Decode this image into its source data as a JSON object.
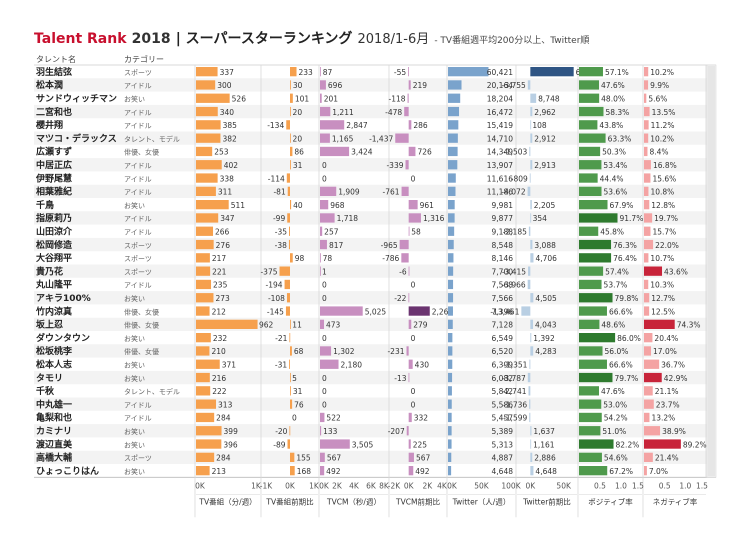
{
  "title": {
    "brand": "Talent Rank",
    "year": "2018",
    "main": "| スーパースターランキング",
    "range": "2018/1-6月",
    "note": "- TV番組週平均200分以上、Twitter順"
  },
  "colors": {
    "tv": "#f6a04d",
    "tv_change": "#f6a04d",
    "tvcm": "#c88fc0",
    "tvcm_change": "#c88fc0",
    "tvcm_change_dark": "#6b3470",
    "twitter": "#7aa3cc",
    "twitter_change": "#b9cfe3",
    "twitter_change_dark": "#2f5584",
    "positive": "#4f9a4c",
    "positive_dark": "#2e7a2e",
    "negative": "#f4a3a3",
    "negative_dark": "#c8243a",
    "row_alt": "#f3f3f3"
  },
  "chart_data": {
    "type": "table",
    "row_header": "タレント名",
    "category_header": "カテゴリー",
    "rows": [
      {
        "name": "羽生結弦",
        "category": "スポーツ",
        "tv": 337,
        "tv_change": 233,
        "tvcm": 87,
        "tvcm_change": -55,
        "twitter": 60421,
        "twitter_change": 65011,
        "positive": 57.1,
        "negative": 10.2
      },
      {
        "name": "松本潤",
        "category": "アイドル",
        "tv": 300,
        "tv_change": 30,
        "tvcm": 696,
        "tvcm_change": 219,
        "twitter": 20164,
        "twitter_change": -3755,
        "positive": 47.6,
        "negative": 9.9
      },
      {
        "name": "サンドウィッチマン",
        "category": "お笑い",
        "tv": 526,
        "tv_change": 101,
        "tvcm": 201,
        "tvcm_change": -118,
        "twitter": 18204,
        "twitter_change": 8748,
        "positive": 48.0,
        "negative": 5.6
      },
      {
        "name": "二宮和也",
        "category": "アイドル",
        "tv": 340,
        "tv_change": 20,
        "tvcm": 1211,
        "tvcm_change": -478,
        "twitter": 16472,
        "twitter_change": 2962,
        "positive": 58.3,
        "negative": 13.5
      },
      {
        "name": "櫻井翔",
        "category": "アイドル",
        "tv": 385,
        "tv_change": -134,
        "tvcm": 2847,
        "tvcm_change": 286,
        "twitter": 15419,
        "twitter_change": 108,
        "positive": 43.8,
        "negative": 11.2
      },
      {
        "name": "マツコ・デラックス",
        "category": "タレント、モデル",
        "tv": 382,
        "tv_change": 20,
        "tvcm": 1165,
        "tvcm_change": -1437,
        "twitter": 14710,
        "twitter_change": 2912,
        "positive": 63.3,
        "negative": 10.2
      },
      {
        "name": "広瀬すず",
        "category": "俳優、女優",
        "tv": 253,
        "tv_change": 86,
        "tvcm": 3424,
        "tvcm_change": 726,
        "twitter": 14349,
        "twitter_change": -1503,
        "positive": 50.3,
        "negative": 8.4
      },
      {
        "name": "中居正広",
        "category": "アイドル",
        "tv": 402,
        "tv_change": 31,
        "tvcm": 0,
        "tvcm_change": -339,
        "twitter": 13907,
        "twitter_change": 2913,
        "positive": 53.4,
        "negative": 16.8
      },
      {
        "name": "伊野尾慧",
        "category": "アイドル",
        "tv": 338,
        "tv_change": -114,
        "tvcm": 0,
        "tvcm_change": 0,
        "twitter": 11616,
        "twitter_change": -809,
        "positive": 44.4,
        "negative": 15.6
      },
      {
        "name": "相葉雅紀",
        "category": "アイドル",
        "tv": 311,
        "tv_change": -81,
        "tvcm": 1909,
        "tvcm_change": -761,
        "twitter": 11186,
        "twitter_change": -4072,
        "positive": 53.6,
        "negative": 10.8
      },
      {
        "name": "千鳥",
        "category": "お笑い",
        "tv": 511,
        "tv_change": 40,
        "tvcm": 968,
        "tvcm_change": 961,
        "twitter": 9981,
        "twitter_change": 2205,
        "positive": 67.9,
        "negative": 12.8
      },
      {
        "name": "指原莉乃",
        "category": "アイドル",
        "tv": 347,
        "tv_change": -99,
        "tvcm": 1718,
        "tvcm_change": 1316,
        "twitter": 9877,
        "twitter_change": 354,
        "positive": 91.7,
        "negative": 19.7
      },
      {
        "name": "山田涼介",
        "category": "アイドル",
        "tv": 266,
        "tv_change": -35,
        "tvcm": 257,
        "tvcm_change": 58,
        "twitter": 9188,
        "twitter_change": -2185,
        "positive": 45.8,
        "negative": 15.7
      },
      {
        "name": "松岡修造",
        "category": "スポーツ",
        "tv": 276,
        "tv_change": -38,
        "tvcm": 817,
        "tvcm_change": -965,
        "twitter": 8548,
        "twitter_change": 3088,
        "positive": 76.3,
        "negative": 22.0
      },
      {
        "name": "大谷翔平",
        "category": "スポーツ",
        "tv": 217,
        "tv_change": 98,
        "tvcm": 78,
        "tvcm_change": -786,
        "twitter": 8146,
        "twitter_change": 4706,
        "positive": 76.4,
        "negative": 10.7
      },
      {
        "name": "貴乃花",
        "category": "スポーツ",
        "tv": 221,
        "tv_change": -375,
        "tvcm": 1,
        "tvcm_change": -6,
        "twitter": 7700,
        "twitter_change": -3415,
        "positive": 57.4,
        "negative": 43.6
      },
      {
        "name": "丸山隆平",
        "category": "アイドル",
        "tv": 235,
        "tv_change": -194,
        "tvcm": 0,
        "tvcm_change": 0,
        "twitter": 7568,
        "twitter_change": -3966,
        "positive": 53.7,
        "negative": 10.3
      },
      {
        "name": "アキラ100%",
        "category": "お笑い",
        "tv": 273,
        "tv_change": -108,
        "tvcm": 0,
        "tvcm_change": -22,
        "twitter": 7566,
        "twitter_change": 4505,
        "positive": 79.8,
        "negative": 12.7
      },
      {
        "name": "竹内涼真",
        "category": "俳優、女優",
        "tv": 212,
        "tv_change": -145,
        "tvcm": 5025,
        "tvcm_change": 2260,
        "twitter": 7396,
        "twitter_change": -13461,
        "positive": 66.6,
        "negative": 12.5
      },
      {
        "name": "坂上忍",
        "category": "俳優、女優",
        "tv": 962,
        "tv_change": 11,
        "tvcm": 473,
        "tvcm_change": 279,
        "twitter": 7128,
        "twitter_change": 4043,
        "positive": 48.6,
        "negative": 74.3
      },
      {
        "name": "ダウンタウン",
        "category": "お笑い",
        "tv": 232,
        "tv_change": -21,
        "tvcm": 0,
        "tvcm_change": 0,
        "twitter": 6549,
        "twitter_change": 1392,
        "positive": 86.0,
        "negative": 20.4
      },
      {
        "name": "松坂桃李",
        "category": "俳優、女優",
        "tv": 210,
        "tv_change": 68,
        "tvcm": 1302,
        "tvcm_change": -231,
        "twitter": 6520,
        "twitter_change": 4283,
        "positive": 56.0,
        "negative": 17.0
      },
      {
        "name": "松本人志",
        "category": "お笑い",
        "tv": 371,
        "tv_change": -31,
        "tvcm": 2180,
        "tvcm_change": 430,
        "twitter": 6399,
        "twitter_change": -1351,
        "positive": 66.6,
        "negative": 36.7
      },
      {
        "name": "タモリ",
        "category": "お笑い",
        "tv": 216,
        "tv_change": 5,
        "tvcm": 0,
        "tvcm_change": -13,
        "twitter": 6082,
        "twitter_change": -3787,
        "positive": 79.7,
        "negative": 42.9
      },
      {
        "name": "千秋",
        "category": "タレント、モデル",
        "tv": 222,
        "tv_change": 31,
        "tvcm": 0,
        "tvcm_change": 0,
        "twitter": 5842,
        "twitter_change": -2741,
        "positive": 47.6,
        "negative": 21.1
      },
      {
        "name": "中丸雄一",
        "category": "アイドル",
        "tv": 313,
        "tv_change": 76,
        "tvcm": 0,
        "tvcm_change": 0,
        "twitter": 5586,
        "twitter_change": -1736,
        "positive": 53.0,
        "negative": 23.7
      },
      {
        "name": "亀梨和也",
        "category": "アイドル",
        "tv": 284,
        "tv_change": 0,
        "tvcm": 522,
        "tvcm_change": 332,
        "twitter": 5457,
        "twitter_change": -1599,
        "positive": 54.2,
        "negative": 13.2
      },
      {
        "name": "カミナリ",
        "category": "お笑い",
        "tv": 399,
        "tv_change": -20,
        "tvcm": 133,
        "tvcm_change": -207,
        "twitter": 5389,
        "twitter_change": 1637,
        "positive": 51.0,
        "negative": 38.9
      },
      {
        "name": "渡辺直美",
        "category": "お笑い",
        "tv": 396,
        "tv_change": -89,
        "tvcm": 3505,
        "tvcm_change": 225,
        "twitter": 5313,
        "twitter_change": 1161,
        "positive": 82.2,
        "negative": 89.2
      },
      {
        "name": "高橋大輔",
        "category": "スポーツ",
        "tv": 284,
        "tv_change": 155,
        "tvcm": 567,
        "tvcm_change": 567,
        "twitter": 4887,
        "twitter_change": 2886,
        "positive": 54.6,
        "negative": 21.4
      },
      {
        "name": "ひょっこりはん",
        "category": "お笑い",
        "tv": 213,
        "tv_change": 168,
        "tvcm": 492,
        "tvcm_change": 492,
        "twitter": 4648,
        "twitter_change": 4648,
        "positive": 67.2,
        "negative": 7.0
      }
    ],
    "columns": [
      {
        "key": "tv",
        "label": "TV番組（分/週）",
        "domain": [
          0,
          1000
        ],
        "ticks": [
          "0K",
          "1K"
        ],
        "tick_values": [
          0,
          1000
        ],
        "color_key": "tv",
        "format": "int",
        "fmt": "",
        "label_pos": "start",
        "zero_label_pos": "start"
      },
      {
        "key": "tv_change",
        "label": "TV番組前期比",
        "domain": [
          -1000,
          1000
        ],
        "ticks": [
          "-1K",
          "0K",
          "1K"
        ],
        "tick_values": [
          -1000,
          0,
          1000
        ],
        "color_key": "tv_change",
        "format": "int",
        "label_pos": "auto"
      },
      {
        "key": "tvcm",
        "label": "TVCM（秒/週）",
        "domain": [
          0,
          8000
        ],
        "ticks": [
          "0K",
          "2K",
          "4K",
          "6K",
          "8K"
        ],
        "tick_values": [
          0,
          2000,
          4000,
          6000,
          8000
        ],
        "color_key": "tvcm",
        "format": "comma",
        "label_pos": "start"
      },
      {
        "key": "tvcm_change",
        "label": "TVCM前期比",
        "domain": [
          -2000,
          4000
        ],
        "ticks": [
          "-2K",
          "0K",
          "2K",
          "4K"
        ],
        "tick_values": [
          -2000,
          0,
          2000,
          4000
        ],
        "color_key": "tvcm_change",
        "dark_key": "tvcm_change_dark",
        "dark_threshold": 2000,
        "format": "comma",
        "label_pos": "auto"
      },
      {
        "key": "twitter",
        "label": "Twitter（人/週）",
        "domain": [
          0,
          100000
        ],
        "ticks": [
          "0K",
          "50K",
          "100K"
        ],
        "tick_values": [
          0,
          50000,
          100000
        ],
        "color_key": "twitter",
        "format": "comma",
        "label_pos": "end"
      },
      {
        "key": "twitter_change",
        "label": "Twitter前期比",
        "domain": [
          -20000,
          70000
        ],
        "ticks": [
          "0K",
          "50K"
        ],
        "tick_values": [
          0,
          50000
        ],
        "color_key": "twitter_change",
        "dark_key": "twitter_change_dark",
        "dark_threshold": 30000,
        "format": "comma",
        "label_pos": "auto"
      },
      {
        "key": "positive",
        "label": "ポジティブ率",
        "domain": [
          0,
          150
        ],
        "ticks": [
          "0.5",
          "1.0",
          "1.5"
        ],
        "tick_values": [
          50,
          100,
          150
        ],
        "color_key": "positive",
        "dark_key": "positive_dark",
        "dark_threshold": 75,
        "format": "pct",
        "label_pos": "end"
      },
      {
        "key": "negative",
        "label": "ネガティブ率",
        "domain": [
          0,
          150
        ],
        "ticks": [
          "0.5",
          "1.0",
          "1.5"
        ],
        "tick_values": [
          50,
          100,
          150
        ],
        "color_key": "negative",
        "dark_key": "negative_dark",
        "dark_threshold": 40,
        "format": "pct",
        "label_pos": "end"
      }
    ]
  }
}
